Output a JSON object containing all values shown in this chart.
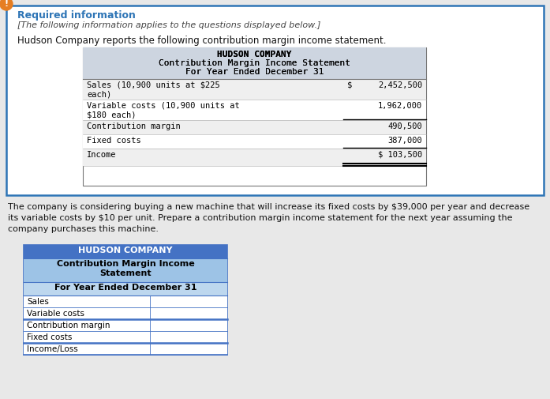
{
  "bg_color": "#e8e8e8",
  "outer_box_color": "#2e75b6",
  "outer_box_fill": "#ffffff",
  "warning_icon_color": "#e67e22",
  "required_info_color": "#2e75b6",
  "required_info_text": "Required information",
  "italic_text": "[The following information applies to the questions displayed below.]",
  "intro_text": "Hudson Company reports the following contribution margin income statement.",
  "table1_header_bg": "#cdd5e0",
  "table1_row_bg_alt": "#efefef",
  "table1_header_lines": [
    "HUDSON COMPANY",
    "Contribution Margin Income Statement",
    "For Year Ended December 31"
  ],
  "paragraph_text_lines": [
    "The company is considering buying a new machine that will increase its fixed costs by $39,000 per year and decrease",
    "its variable costs by $10 per unit. Prepare a contribution margin income statement for the next year assuming the",
    "company purchases this machine."
  ],
  "table2_header1_bg": "#4472c4",
  "table2_header2_bg": "#9dc3e6",
  "table2_header3_bg": "#bdd7ee",
  "table2_header1_text": "HUDSON COMPANY",
  "table2_header2_text": "Contribution Margin Income\nStatement",
  "table2_header3_text": "For Year Ended December 31",
  "table2_rows": [
    "Sales",
    "Variable costs",
    "Contribution margin",
    "Fixed costs",
    "Income/Loss"
  ],
  "table2_border_color": "#4472c4"
}
